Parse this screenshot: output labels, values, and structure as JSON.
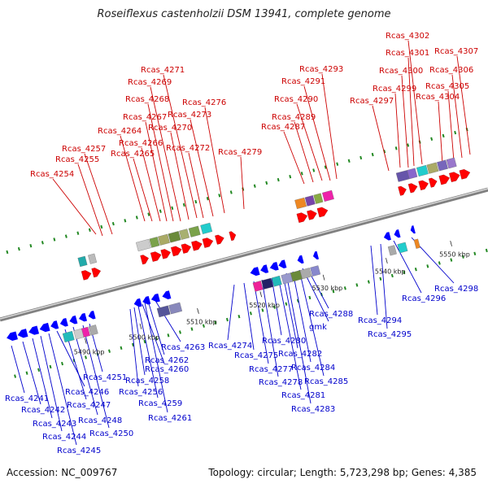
{
  "title": "Roseiflexus castenholzii DSM 13941, complete genome",
  "footer": {
    "accession": "Accession: NC_009767",
    "summary": "Topology: circular; Length: 5,723,298 bp; Genes: 4,385"
  },
  "colors": {
    "top_label": "#cc0000",
    "bottom_label": "#0000cc",
    "forward_arrow": "#ff0000",
    "reverse_arrow": "#0000ff",
    "backbone": "#999999",
    "tick": "#228822"
  },
  "ticks": [
    {
      "label": "5490 kbp"
    },
    {
      "label": "5500 kbp"
    },
    {
      "label": "5510 kbp"
    },
    {
      "label": "5520 kbp"
    },
    {
      "label": "5530 kbp"
    },
    {
      "label": "5540 kbp"
    },
    {
      "label": "5550 kbp"
    }
  ],
  "top_genes": [
    "Rcas_4254",
    "Rcas_4255",
    "Rcas_4257",
    "Rcas_4264",
    "Rcas_4265",
    "Rcas_4266",
    "Rcas_4267",
    "Rcas_4268",
    "Rcas_4269",
    "Rcas_4270",
    "Rcas_4271",
    "Rcas_4272",
    "Rcas_4273",
    "Rcas_4276",
    "Rcas_4279",
    "Rcas_4287",
    "Rcas_4289",
    "Rcas_4290",
    "Rcas_4291",
    "Rcas_4293",
    "Rcas_4297",
    "Rcas_4299",
    "Rcas_4300",
    "Rcas_4301",
    "Rcas_4302",
    "Rcas_4304",
    "Rcas_4305",
    "Rcas_4306",
    "Rcas_4307"
  ],
  "bottom_genes": [
    "Rcas_4241",
    "Rcas_4242",
    "Rcas_4243",
    "Rcas_4244",
    "Rcas_4245",
    "Rcas_4246",
    "Rcas_4247",
    "Rcas_4248",
    "Rcas_4250",
    "Rcas_4251",
    "Rcas_4256",
    "Rcas_4258",
    "Rcas_4259",
    "Rcas_4260",
    "Rcas_4261",
    "Rcas_4262",
    "Rcas_4263",
    "Rcas_4274",
    "Rcas_4275",
    "Rcas_4277",
    "Rcas_4278",
    "Rcas_4280",
    "Rcas_4281",
    "Rcas_4282",
    "Rcas_4283",
    "Rcas_4284",
    "Rcas_4285",
    "gmk",
    "Rcas_4288",
    "Rcas_4294",
    "Rcas_4295",
    "Rcas_4296",
    "Rcas_4298"
  ]
}
